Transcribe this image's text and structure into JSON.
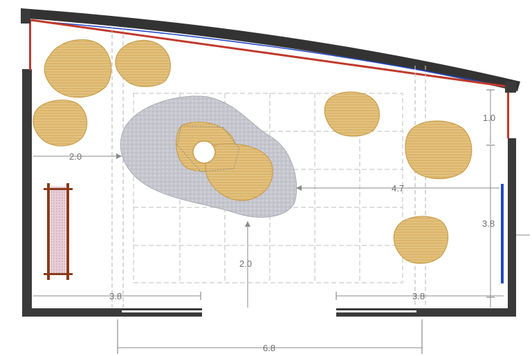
{
  "dimensions": {
    "left_offset": "2.0",
    "island_width": "4.7",
    "top_gap": "1.0",
    "right_height": "3.8",
    "island_front": "2.0",
    "left_wall": "3.8",
    "right_wall": "3.8",
    "opening": "6.8"
  },
  "colors": {
    "wall": "#3a3a3a",
    "roof_edge": "#c0392b",
    "window": "#2447c8",
    "rock": "#d9b46a",
    "gravel": "#c8c8d0",
    "ladder": "#8b3a1a"
  },
  "icons": {
    "ladder": "ladder-icon"
  }
}
